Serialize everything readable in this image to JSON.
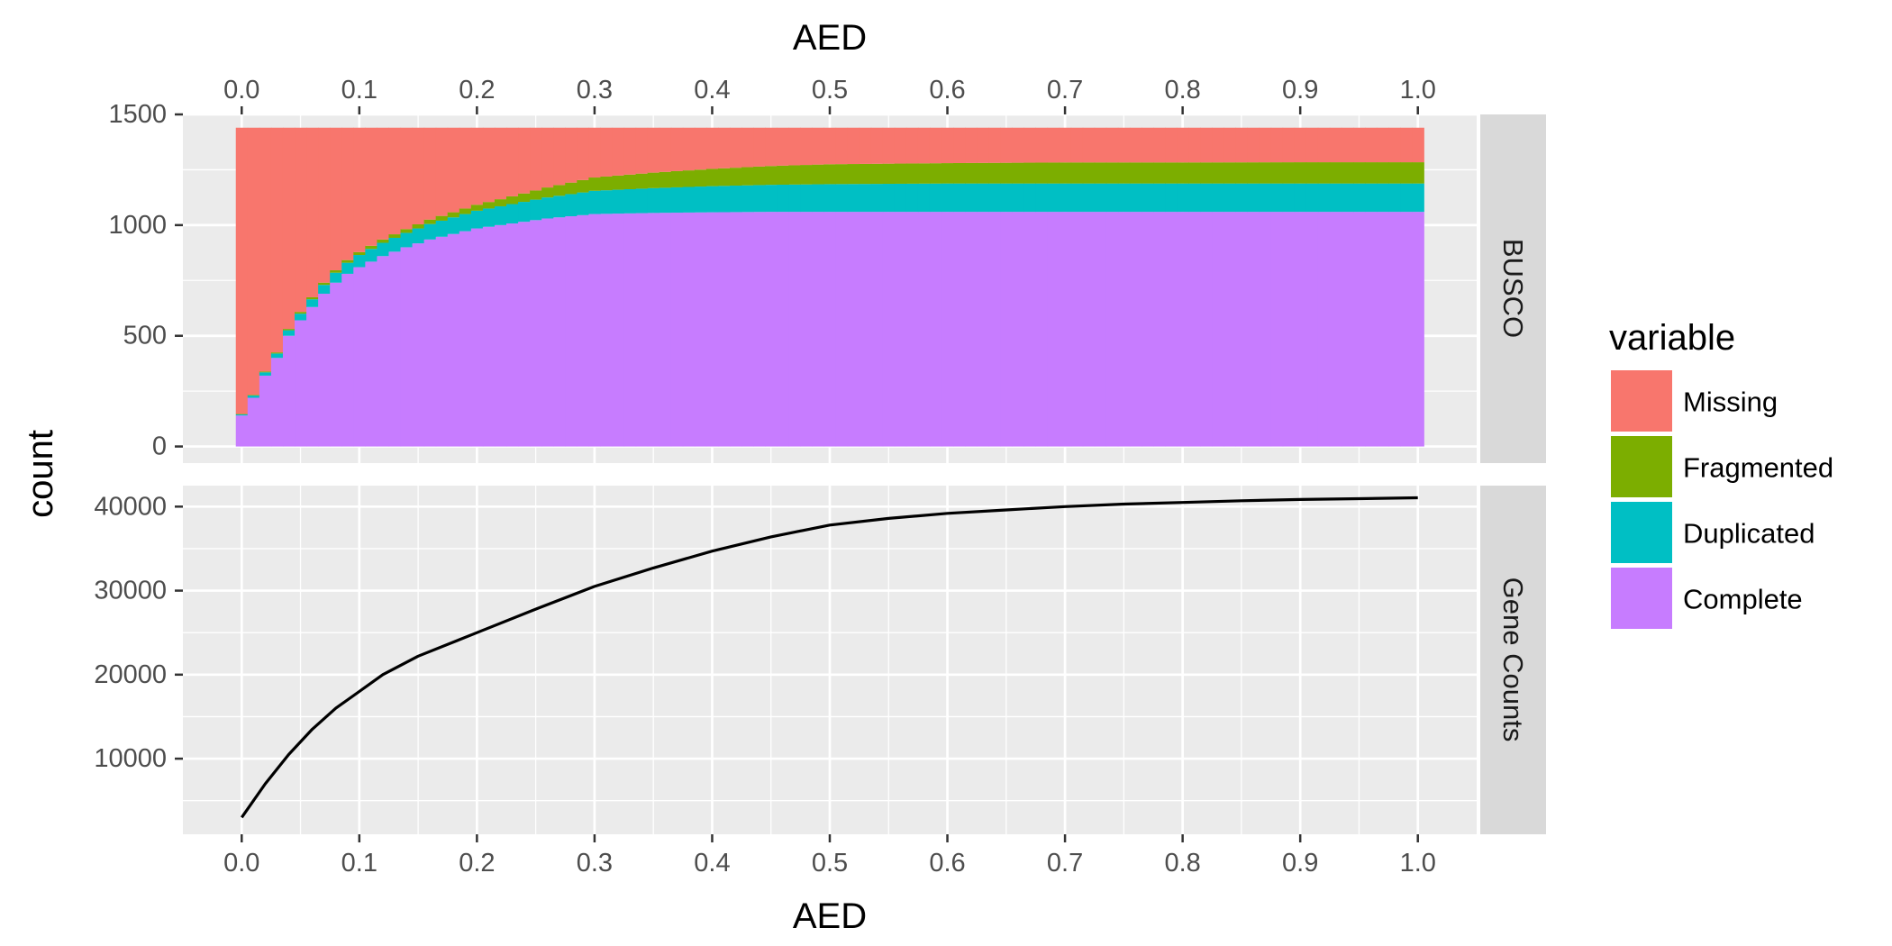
{
  "chart_data": {
    "type": "faceted",
    "xlabel": "AED",
    "ylabel": "count",
    "x_ticks": [
      "0.0",
      "0.1",
      "0.2",
      "0.3",
      "0.4",
      "0.5",
      "0.6",
      "0.7",
      "0.8",
      "0.9",
      "1.0"
    ],
    "xlim": [
      -0.05,
      1.05
    ],
    "legend": {
      "title": "variable",
      "placement": "right",
      "entries": [
        {
          "label": "Missing",
          "color": "#F8766D"
        },
        {
          "label": "Fragmented",
          "color": "#7CAE00"
        },
        {
          "label": "Duplicated",
          "color": "#00BFC4"
        },
        {
          "label": "Complete",
          "color": "#C77CFF"
        }
      ]
    },
    "panels": [
      {
        "strip": "BUSCO",
        "type": "bar",
        "stacked": true,
        "ylim": [
          -75,
          1500
        ],
        "y_ticks": [
          0,
          500,
          1000,
          1500
        ],
        "y_tick_labels": [
          "0",
          "500",
          "1000",
          "1500"
        ],
        "total": 1440,
        "x": [
          0.0,
          0.01,
          0.02,
          0.03,
          0.04,
          0.05,
          0.06,
          0.07,
          0.08,
          0.09,
          0.1,
          0.12,
          0.14,
          0.16,
          0.18,
          0.2,
          0.22,
          0.24,
          0.26,
          0.28,
          0.3,
          0.35,
          0.4,
          0.45,
          0.5,
          0.6,
          0.7,
          0.8,
          0.9,
          1.0
        ],
        "series": [
          {
            "name": "Complete",
            "values": [
              140,
              220,
              320,
              400,
              500,
              570,
              630,
              690,
              740,
              780,
              810,
              860,
              900,
              935,
              960,
              985,
              1000,
              1015,
              1030,
              1040,
              1050,
              1055,
              1058,
              1060,
              1060,
              1060,
              1060,
              1060,
              1060,
              1060
            ]
          },
          {
            "name": "Duplicated",
            "values": [
              5,
              10,
              15,
              20,
              25,
              30,
              35,
              40,
              45,
              50,
              55,
              60,
              65,
              70,
              75,
              80,
              85,
              90,
              95,
              100,
              105,
              112,
              118,
              122,
              125,
              128,
              128,
              128,
              128,
              128
            ]
          },
          {
            "name": "Fragmented",
            "values": [
              2,
              3,
              4,
              5,
              6,
              8,
              9,
              10,
              11,
              12,
              13,
              15,
              17,
              20,
              23,
              27,
              32,
              38,
              45,
              52,
              60,
              70,
              78,
              85,
              90,
              92,
              95,
              95,
              96,
              96
            ]
          },
          {
            "name": "Missing",
            "values": [
              1293,
              1207,
              1101,
              1015,
              909,
              832,
              766,
              700,
              644,
              598,
              562,
              505,
              458,
              415,
              382,
              348,
              323,
              297,
              270,
              248,
              225,
              203,
              186,
              173,
              165,
              160,
              157,
              157,
              156,
              156
            ]
          }
        ]
      },
      {
        "strip": "Gene Counts",
        "type": "line",
        "ylim": [
          1000,
          42500
        ],
        "y_ticks": [
          10000,
          20000,
          30000,
          40000
        ],
        "y_tick_labels": [
          "10000",
          "20000",
          "30000",
          "40000"
        ],
        "x": [
          0.0,
          0.02,
          0.04,
          0.06,
          0.08,
          0.1,
          0.12,
          0.15,
          0.2,
          0.25,
          0.3,
          0.35,
          0.4,
          0.45,
          0.5,
          0.55,
          0.6,
          0.65,
          0.7,
          0.75,
          0.8,
          0.85,
          0.9,
          0.95,
          1.0
        ],
        "series": [
          {
            "name": "",
            "color": "#000000",
            "values": [
              3000,
              7000,
              10500,
              13500,
              16000,
              18000,
              20000,
              22200,
              25000,
              27800,
              30500,
              32700,
              34700,
              36400,
              37800,
              38600,
              39200,
              39600,
              40000,
              40300,
              40500,
              40700,
              40850,
              40950,
              41050
            ]
          }
        ]
      }
    ]
  }
}
